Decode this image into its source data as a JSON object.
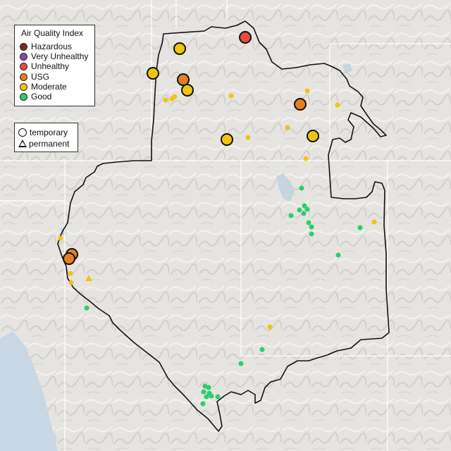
{
  "legend": {
    "title": "Air Quality Index",
    "categories": [
      {
        "label": "Hazardous",
        "color": "#7e2a2a"
      },
      {
        "label": "Very Unhealthy",
        "color": "#8e44ad"
      },
      {
        "label": "Unhealthy",
        "color": "#e74c3c"
      },
      {
        "label": "USG",
        "color": "#e67e22"
      },
      {
        "label": "Moderate",
        "color": "#f1c40f"
      },
      {
        "label": "Good",
        "color": "#2ecc71"
      }
    ]
  },
  "shape_legend": {
    "temporary": "temporary",
    "permanent": "permanent"
  },
  "map": {
    "basemap": "shaded-relief",
    "boundary_color": "#111111",
    "state_line_color": "#ffffff"
  }
}
